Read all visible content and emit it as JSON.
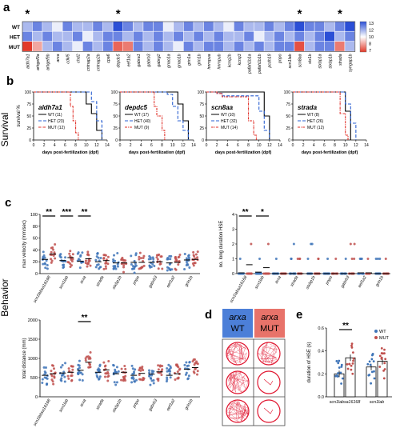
{
  "panel_labels": {
    "a": "a",
    "b": "b",
    "c": "c",
    "d": "d",
    "e": "e"
  },
  "side_labels": {
    "survival": "Survival",
    "behavior": "Behavior"
  },
  "heatmap": {
    "rows": [
      "WT",
      "HET",
      "MUT"
    ],
    "genes": [
      "aldh7a1",
      "arhgef9a",
      "arhgef9b",
      "arxa",
      "cdkl5",
      "chd2",
      "cntnap2a",
      "cntnap2b",
      "cpa6",
      "depdc5",
      "eef1a2",
      "gabra1",
      "gabrb3",
      "gabrg2",
      "gnao1a",
      "gnao1b",
      "grin1a",
      "grin1b",
      "hnrnpua",
      "hnrnpub",
      "kcnq2b",
      "kcnq3",
      "pafah1b1a",
      "pafah1b1b",
      "pcdh19",
      "pnpo",
      "scn1lab",
      "scn8aa",
      "stx1b",
      "stxbp1a",
      "stxbp1b",
      "strada",
      "syngap1b"
    ],
    "asterisk_genes": [
      "aldh7a1",
      "depdc5",
      "scn8aa",
      "strada"
    ],
    "asterisk": "*",
    "values": [
      [
        11,
        12,
        11,
        10,
        12,
        11,
        11,
        12,
        11,
        13,
        12,
        11,
        12,
        12,
        10,
        11,
        12,
        11,
        12,
        11,
        10,
        12,
        11,
        11,
        12,
        11,
        12,
        13,
        12,
        12,
        11,
        12,
        13
      ],
      [
        12,
        11,
        12,
        11,
        11,
        12,
        10,
        11,
        12,
        12,
        11,
        12,
        11,
        12,
        11,
        12,
        11,
        12,
        11,
        12,
        11,
        11,
        12,
        10,
        11,
        12,
        11,
        12,
        11,
        12,
        13,
        11,
        12
      ],
      [
        2,
        7,
        11,
        12,
        11,
        10,
        12,
        11,
        12,
        4,
        5,
        12,
        11,
        12,
        11,
        10,
        12,
        11,
        12,
        12,
        11,
        12,
        11,
        12,
        11,
        12,
        12,
        3,
        11,
        12,
        12,
        5,
        11
      ]
    ],
    "colorbar": {
      "ticks": [
        "13",
        "12",
        "10",
        "8",
        "7"
      ],
      "high_color": "#2b4fd6",
      "low_color": "#e23a2a"
    }
  },
  "survival_axes": {
    "ylabel": "survival %",
    "xlabel": "days post-fertilization (dpf)",
    "yticks": [
      "0",
      "25",
      "50",
      "75",
      "100"
    ],
    "xticks": [
      "0",
      "2",
      "4",
      "6",
      "8",
      "10",
      "12",
      "14"
    ]
  },
  "survival": [
    {
      "gene": "aldh7a1",
      "legend": [
        "WT (11)",
        "HET (23)",
        "MUT (12)"
      ]
    },
    {
      "gene": "depdc5",
      "legend": [
        "WT (17)",
        "HET (40)",
        "MUT (9)"
      ]
    },
    {
      "gene": "scn8aa",
      "legend": [
        "WT (10)",
        "HET (32)",
        "MUT (14)"
      ]
    },
    {
      "gene": "strada",
      "legend": [
        "WT (8)",
        "HET (26)",
        "MUT (12)"
      ]
    }
  ],
  "chart_data": [
    {
      "type": "scatter",
      "title": "",
      "ylabel": "max velocity (mm/sec)",
      "ylim": [
        0,
        100
      ],
      "yticks": [
        "0",
        "20",
        "40",
        "60",
        "80",
        "100"
      ],
      "categories": [
        "scn1lab^sa16168",
        "scn1lab",
        "arxa",
        "strada",
        "stxbp1b",
        "pnpo",
        "gabrb3",
        "eef1a2",
        "grin1b"
      ],
      "annotations": [
        "**",
        "***",
        "**"
      ],
      "series": [
        {
          "name": "WT",
          "means": [
            24,
            22,
            21,
            20,
            18,
            19,
            19,
            18,
            23
          ]
        },
        {
          "name": "MUT",
          "means": [
            33,
            27,
            25,
            22,
            18,
            19,
            20,
            19,
            24
          ]
        }
      ]
    },
    {
      "type": "scatter",
      "title": "",
      "ylabel": "no. long duration HSE",
      "ylim": [
        0,
        4
      ],
      "yticks": [
        "0",
        "1",
        "2",
        "3",
        "4"
      ],
      "categories": [
        "scn1lab^sa16168",
        "scn1lab",
        "arxa",
        "strada",
        "stxbp1b",
        "pnpo",
        "gabrb3",
        "eef1a2",
        "grin1b"
      ],
      "annotations": [
        "**",
        "*"
      ],
      "series": [
        {
          "name": "WT",
          "means": [
            0.05,
            0.1,
            0,
            0,
            0,
            0,
            0,
            0.05,
            0
          ]
        },
        {
          "name": "MUT",
          "means": [
            0.6,
            0.4,
            0,
            0,
            0,
            0,
            0,
            0.05,
            0
          ]
        }
      ]
    },
    {
      "type": "scatter",
      "title": "",
      "ylabel": "total distance (mm)",
      "ylim": [
        0,
        2000
      ],
      "yticks": [
        "0",
        "500",
        "1000",
        "1500",
        "2000"
      ],
      "categories": [
        "scn1lab^sa16168",
        "scn1lab",
        "arxa",
        "strada",
        "stxbp1b",
        "pnpo",
        "gabrb3",
        "eef1a2",
        "grin1b"
      ],
      "annotations": [
        "**"
      ],
      "series": [
        {
          "name": "WT",
          "means": [
            560,
            620,
            690,
            640,
            600,
            560,
            590,
            560,
            720
          ]
        },
        {
          "name": "MUT",
          "means": [
            600,
            640,
            900,
            700,
            640,
            610,
            650,
            600,
            760
          ]
        }
      ]
    },
    {
      "type": "bar",
      "title": "",
      "ylabel": "duration of HSE (s)",
      "ylim": [
        0,
        0.6
      ],
      "yticks": [
        "0.0",
        "0.2",
        "0.4",
        "0.6"
      ],
      "categories": [
        "scn1lab^sa16168",
        "scn1lab"
      ],
      "annotations": [
        "**"
      ],
      "legend": [
        "WT",
        "MUT"
      ],
      "series": [
        {
          "name": "WT",
          "values": [
            0.2,
            0.26
          ]
        },
        {
          "name": "MUT",
          "values": [
            0.34,
            0.31
          ]
        }
      ]
    }
  ],
  "panel_d": {
    "headers": [
      {
        "gene": "arxa",
        "genotype": "WT"
      },
      {
        "gene": "arxa",
        "genotype": "MUT"
      }
    ]
  },
  "colors": {
    "wt": "#3e74b8",
    "mut": "#c0504d",
    "wt_line": "#000000",
    "het_line": "#2a5fd0",
    "mut_line": "#e0312a",
    "d_wt_bg": "#4c7fd8",
    "d_mut_bg": "#e8736a",
    "track": "#e0142e"
  }
}
